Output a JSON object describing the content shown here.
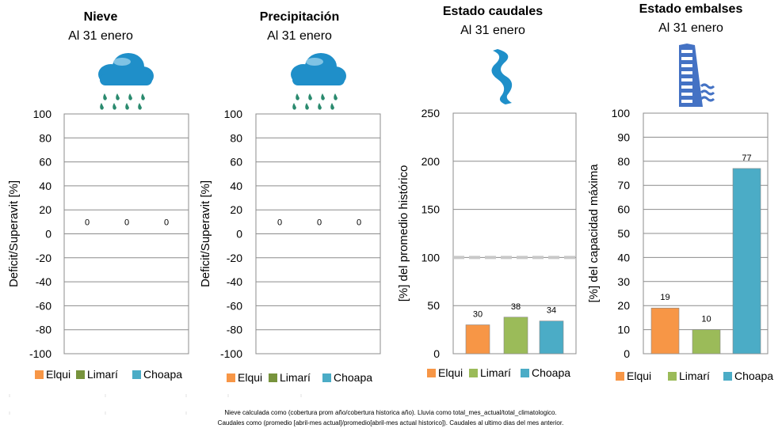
{
  "footnote": {
    "line1": "Nieve calculada como (cobertura prom año/cobertura historica año). Lluvia como total_mes_actual/total_climatologico.",
    "line2": "Caudales como (promedio [abril-mes actual]/promedio[abril-mes actual historico]). Caudales al ultimo dias del mes anterior."
  },
  "colors": {
    "Elqui": "#f79646",
    "Limarí": "#9bbb59",
    "Choapa": "#4bacc6",
    "Limarí_legend_dark": "#77933c",
    "icon_blue": "#1f8fc9",
    "reference_line": "#c8c8c8"
  },
  "chart_data": [
    {
      "id": "nieve",
      "type": "bar",
      "title": "Nieve",
      "subtitle": "Al 31 enero",
      "icon": "rain-cloud-icon",
      "ylabel": "Deficit/Superavit [%]",
      "xlabel": "",
      "ylim": [
        -100,
        100
      ],
      "yticks": [
        100,
        80,
        60,
        40,
        20,
        0,
        -20,
        -40,
        -60,
        -80,
        -100
      ],
      "grid": true,
      "categories": [
        "Elqui",
        "Limarí",
        "Choapa"
      ],
      "values": [
        0,
        0,
        0
      ],
      "data_labels": [
        "0",
        "0",
        "0"
      ],
      "legend_labels": [
        "Elqui",
        "Limarí",
        "Choapa"
      ],
      "legend": "bottom"
    },
    {
      "id": "precipitacion",
      "type": "bar",
      "title": "Precipitación",
      "subtitle": "Al 31 enero",
      "icon": "rain-cloud-icon",
      "ylabel": "Deficit/Superavit [%]",
      "xlabel": "",
      "ylim": [
        -100,
        100
      ],
      "yticks": [
        100,
        80,
        60,
        40,
        20,
        0,
        -20,
        -40,
        -60,
        -80,
        -100
      ],
      "grid": true,
      "categories": [
        "Elqui",
        "Limarí",
        "Choapa"
      ],
      "values": [
        0,
        0,
        0
      ],
      "data_labels": [
        "0",
        "0",
        "0"
      ],
      "legend_labels": [
        "Elqui",
        "Limarí",
        "Choapa"
      ],
      "legend": "bottom"
    },
    {
      "id": "caudales",
      "type": "bar",
      "title": "Estado caudales",
      "subtitle": "Al 31 enero",
      "icon": "river-icon",
      "ylabel": "[%] del promedio histórico",
      "xlabel": "",
      "ylim": [
        0,
        250
      ],
      "yticks": [
        250,
        200,
        150,
        100,
        50,
        0
      ],
      "grid": true,
      "reference_line": 100,
      "categories": [
        "Elqui",
        "Limarí",
        "Choapa"
      ],
      "values": [
        30,
        38,
        34
      ],
      "data_labels": [
        "30",
        "38",
        "34"
      ],
      "legend_labels": [
        "Elqui",
        "Limarí",
        "Choapa"
      ],
      "legend": "bottom"
    },
    {
      "id": "embalses",
      "type": "bar",
      "title": "Estado embalses",
      "subtitle": "Al 31 enero",
      "icon": "dam-icon",
      "ylabel": "[%] del capacidad máxima",
      "xlabel": "",
      "ylim": [
        0,
        100
      ],
      "yticks": [
        100,
        90,
        80,
        70,
        60,
        50,
        40,
        30,
        20,
        10,
        0
      ],
      "grid": true,
      "categories": [
        "Elqui",
        "Limarí",
        "Choapa"
      ],
      "values": [
        19,
        10,
        77
      ],
      "data_labels": [
        "19",
        "10",
        "77"
      ],
      "legend_labels": [
        "Elqui",
        "Limarí",
        "Choapa"
      ],
      "legend": "bottom"
    }
  ]
}
